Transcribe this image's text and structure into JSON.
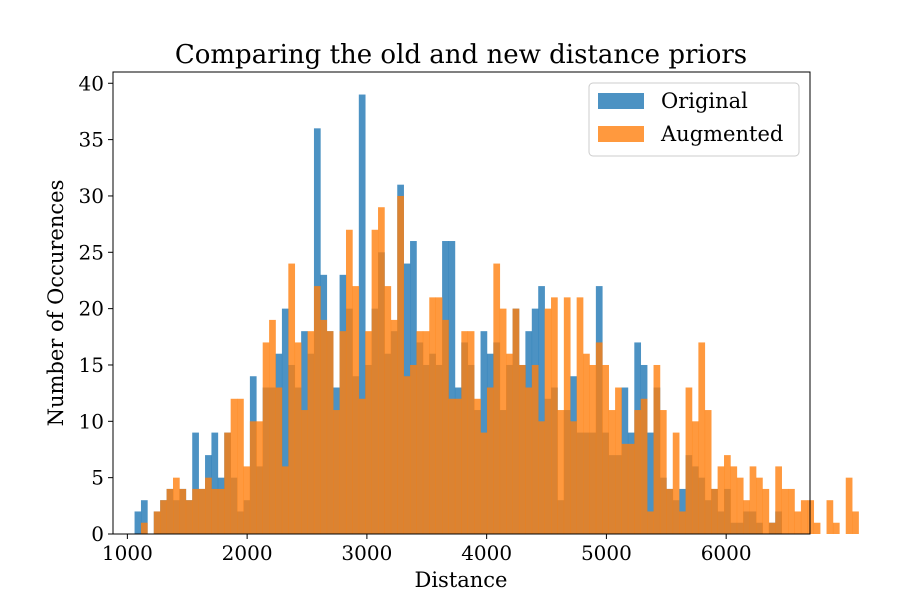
{
  "chart_data": {
    "type": "bar",
    "title": "Comparing the old and new distance priors",
    "xlabel": "Distance",
    "ylabel": "Number of Occurences",
    "xlim": [
      880,
      6700
    ],
    "ylim": [
      0,
      41
    ],
    "xticks": [
      1000,
      2000,
      3000,
      4000,
      5000,
      6000
    ],
    "yticks": [
      0,
      5,
      10,
      15,
      20,
      25,
      30,
      35,
      40
    ],
    "legend_position": "upper right",
    "bin_start": 1060,
    "bin_width": 53.5,
    "series": [
      {
        "name": "Original",
        "color": "#1f77b4",
        "values": [
          2,
          3,
          0,
          2,
          3,
          4,
          3,
          4,
          3,
          9,
          4,
          7,
          9,
          5,
          9,
          5,
          2,
          3,
          14,
          6,
          13,
          13,
          16,
          20,
          15,
          13,
          18,
          16,
          36,
          23,
          18,
          13,
          23,
          20,
          14,
          39,
          15,
          20,
          25,
          16,
          18,
          31,
          24,
          26,
          17,
          15,
          16,
          15,
          26,
          26,
          13,
          17,
          15,
          11,
          18,
          16,
          17,
          11,
          15,
          20,
          15,
          18,
          20,
          22,
          12,
          13,
          3,
          11,
          14,
          9,
          9,
          9,
          22,
          9,
          7,
          7,
          13,
          9,
          17,
          15,
          9,
          13,
          5,
          4,
          3,
          4,
          7,
          6,
          5,
          3,
          4,
          2,
          4,
          1,
          1,
          2,
          2,
          1,
          0,
          1,
          2
        ]
      },
      {
        "name": "Augmented",
        "color": "#ff7f0e",
        "values": [
          0,
          1,
          0,
          2,
          3,
          4,
          5,
          4,
          3,
          4,
          4,
          5,
          4,
          4,
          9,
          12,
          12,
          6,
          10,
          10,
          17,
          19,
          13,
          6,
          24,
          17,
          11,
          18,
          22,
          19,
          18,
          11,
          18,
          27,
          22,
          12,
          18,
          27,
          29,
          22,
          19,
          30,
          14,
          15,
          18,
          18,
          21,
          21,
          19,
          12,
          12,
          18,
          18,
          12,
          9,
          13,
          24,
          20,
          16,
          20,
          15,
          13,
          15,
          10,
          20,
          21,
          11,
          21,
          10,
          21,
          16,
          15,
          17,
          15,
          11,
          13,
          8,
          8,
          11,
          12,
          2,
          15,
          11,
          4,
          9,
          2,
          13,
          10,
          17,
          11,
          4,
          6,
          7,
          6,
          5,
          3,
          6,
          5,
          4,
          1,
          6,
          4,
          4,
          2,
          3,
          3,
          1,
          0,
          3,
          1,
          0,
          5,
          2
        ]
      }
    ]
  }
}
